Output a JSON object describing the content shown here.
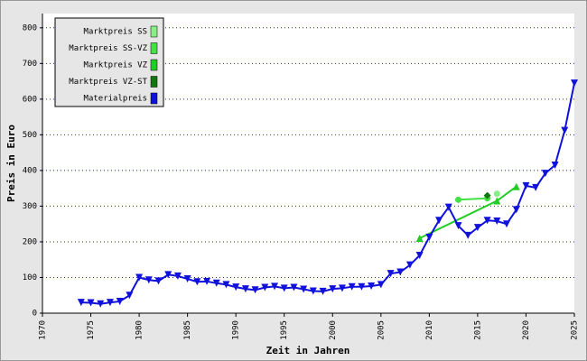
{
  "chart_data": {
    "type": "line",
    "x_label": "Zeit in Jahren",
    "y_label": "Preis in Euro",
    "xlim": [
      1970,
      2025
    ],
    "xticks": [
      1970,
      1975,
      1980,
      1985,
      1990,
      1995,
      2000,
      2005,
      2010,
      2015,
      2020,
      2025
    ],
    "ylim": [
      0,
      840
    ],
    "yticks": [
      0,
      100,
      200,
      300,
      400,
      500,
      600,
      700,
      800
    ],
    "grid": true,
    "legend": "top-left",
    "series": [
      {
        "name": "Marktpreis SS",
        "color": "#88ee88",
        "marker": "circle",
        "x": [
          2017
        ],
        "values": [
          335
        ]
      },
      {
        "name": "Marktpreis SS-VZ",
        "color": "#44e044",
        "marker": "circle",
        "x": [
          2013,
          2016
        ],
        "values": [
          318,
          322
        ]
      },
      {
        "name": "Marktpreis VZ",
        "color": "#22cc22",
        "marker": "triangle-up",
        "x": [
          2009,
          2017,
          2019
        ],
        "values": [
          210,
          315,
          355
        ]
      },
      {
        "name": "Marktpreis VZ-ST",
        "color": "#117711",
        "marker": "diamond",
        "x": [
          2016
        ],
        "values": [
          330
        ]
      },
      {
        "name": "Materialpreis",
        "color": "#1111dd",
        "marker": "triangle-down",
        "x": [
          1974,
          1975,
          1976,
          1977,
          1978,
          1979,
          1980,
          1981,
          1982,
          1983,
          1984,
          1985,
          1986,
          1987,
          1988,
          1989,
          1990,
          1991,
          1992,
          1993,
          1994,
          1995,
          1996,
          1997,
          1998,
          1999,
          2000,
          2001,
          2002,
          2003,
          2004,
          2005,
          2006,
          2007,
          2008,
          2009,
          2010,
          2011,
          2012,
          2013,
          2014,
          2015,
          2016,
          2017,
          2018,
          2019,
          2020,
          2021,
          2022,
          2023,
          2024,
          2025
        ],
        "values": [
          30,
          29,
          26,
          30,
          33,
          50,
          100,
          93,
          90,
          108,
          104,
          96,
          88,
          89,
          84,
          80,
          73,
          68,
          65,
          72,
          75,
          70,
          72,
          67,
          62,
          61,
          68,
          70,
          74,
          74,
          76,
          80,
          111,
          115,
          135,
          162,
          213,
          260,
          297,
          245,
          218,
          240,
          260,
          258,
          250,
          290,
          357,
          352,
          392,
          415,
          512,
          645
        ]
      }
    ]
  }
}
